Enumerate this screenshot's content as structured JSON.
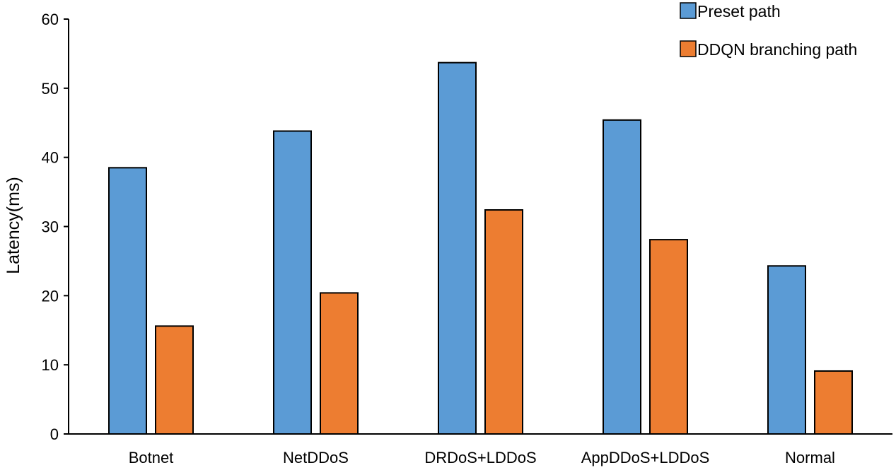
{
  "chart_data": {
    "type": "bar",
    "title": "",
    "xlabel": "",
    "ylabel": "Latency(ms)",
    "ylim": [
      0,
      60
    ],
    "yticks": [
      0,
      10,
      20,
      30,
      40,
      50,
      60
    ],
    "grid": false,
    "legend_position": "top-right",
    "categories": [
      "Botnet",
      "NetDDoS",
      "DRDoS+LDDoS",
      "AppDDoS+LDDoS",
      "Normal"
    ],
    "series": [
      {
        "name": "Preset path",
        "color": "#5b9bd5",
        "values": [
          38.5,
          43.8,
          53.7,
          45.4,
          24.3
        ]
      },
      {
        "name": "DDQN branching path",
        "color": "#ed7d31",
        "values": [
          15.6,
          20.4,
          32.4,
          28.1,
          9.1
        ]
      }
    ]
  }
}
